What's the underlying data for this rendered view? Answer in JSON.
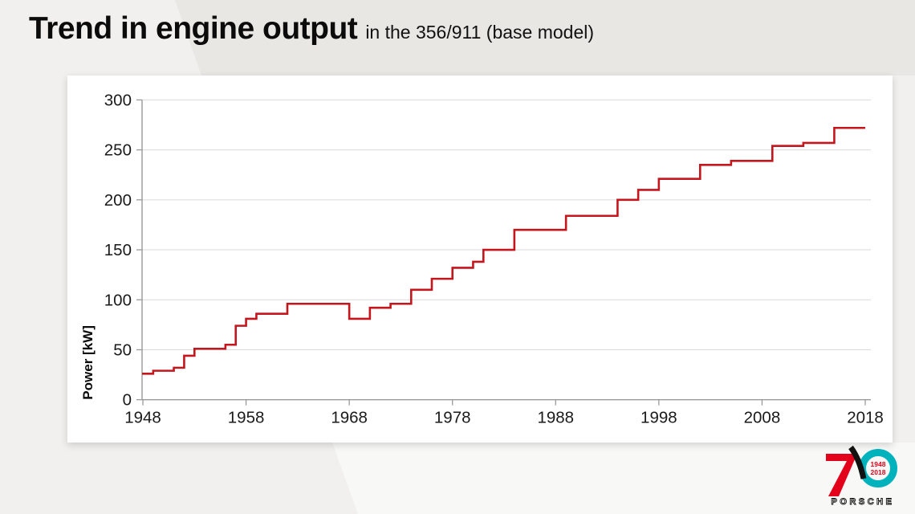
{
  "slide": {
    "title": "Trend in engine output",
    "subtitle": "in the 356/911 (base model)"
  },
  "chart_data": {
    "type": "line",
    "subtype": "step-after",
    "title": "Trend in engine output in the 356/911 (base model)",
    "ylabel": "Power [kW]",
    "xlabel": "",
    "xlim": [
      1948,
      2018
    ],
    "ylim": [
      0,
      300
    ],
    "x_ticks": [
      1948,
      1958,
      1968,
      1978,
      1988,
      1998,
      2008,
      2018
    ],
    "y_ticks": [
      0,
      50,
      100,
      150,
      200,
      250,
      300
    ],
    "grid": "horizontal",
    "legend": "none",
    "line_color": "#c4161d",
    "series": [
      {
        "name": "356/911 base model power",
        "end_year": 2018,
        "steps": [
          {
            "year": 1948,
            "kw": 26
          },
          {
            "year": 1949,
            "kw": 29
          },
          {
            "year": 1951,
            "kw": 32
          },
          {
            "year": 1952,
            "kw": 44
          },
          {
            "year": 1953,
            "kw": 51
          },
          {
            "year": 1956,
            "kw": 55
          },
          {
            "year": 1957,
            "kw": 74
          },
          {
            "year": 1958,
            "kw": 81
          },
          {
            "year": 1959,
            "kw": 86
          },
          {
            "year": 1962,
            "kw": 96
          },
          {
            "year": 1968,
            "kw": 81
          },
          {
            "year": 1970,
            "kw": 92
          },
          {
            "year": 1972,
            "kw": 96
          },
          {
            "year": 1974,
            "kw": 110
          },
          {
            "year": 1976,
            "kw": 121
          },
          {
            "year": 1978,
            "kw": 132
          },
          {
            "year": 1980,
            "kw": 138
          },
          {
            "year": 1981,
            "kw": 150
          },
          {
            "year": 1984,
            "kw": 170
          },
          {
            "year": 1989,
            "kw": 184
          },
          {
            "year": 1994,
            "kw": 200
          },
          {
            "year": 1996,
            "kw": 210
          },
          {
            "year": 1998,
            "kw": 221
          },
          {
            "year": 2002,
            "kw": 235
          },
          {
            "year": 2005,
            "kw": 239
          },
          {
            "year": 2009,
            "kw": 254
          },
          {
            "year": 2012,
            "kw": 257
          },
          {
            "year": 2015,
            "kw": 272
          }
        ]
      }
    ]
  },
  "logo": {
    "digit": "7",
    "year_top": "1948",
    "year_bottom": "2018",
    "wordmark": "PORSCHE"
  },
  "colors": {
    "accent_red": "#c4161d",
    "logo_red": "#e2001a",
    "logo_black": "#111111",
    "logo_teal": "#00b2bc",
    "grid": "#d9d9d9",
    "axis": "#9a9a9a",
    "tick_text": "#1a1a1a"
  }
}
